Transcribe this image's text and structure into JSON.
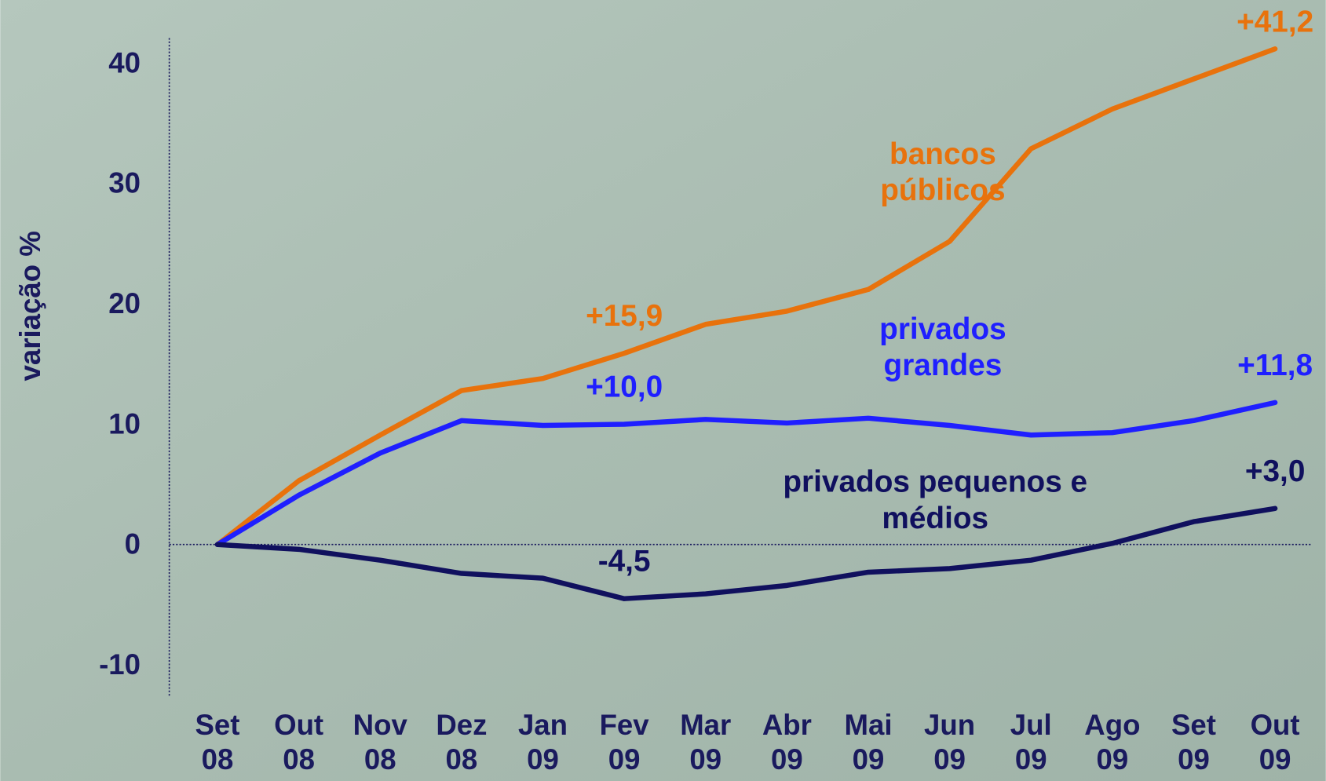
{
  "chart_data": {
    "type": "line",
    "y_label": "variação %",
    "categories": [
      "Set 08",
      "Out 08",
      "Nov 08",
      "Dez 08",
      "Jan 09",
      "Fev 09",
      "Mar 09",
      "Abr 09",
      "Mai 09",
      "Jun 09",
      "Jul 09",
      "Ago 09",
      "Set 09",
      "Out 09"
    ],
    "series": [
      {
        "name": "bancos públicos",
        "color": "#e8720c",
        "values": [
          0,
          5.3,
          9.1,
          12.8,
          13.8,
          15.9,
          18.3,
          19.4,
          21.2,
          25.2,
          32.9,
          36.2,
          38.7,
          41.2
        ],
        "value_labels": [
          null,
          null,
          null,
          null,
          null,
          "+15,9",
          null,
          null,
          null,
          null,
          null,
          null,
          null,
          "+41,2"
        ]
      },
      {
        "name": "privados grandes",
        "color": "#1f1fff",
        "values": [
          0,
          4.1,
          7.6,
          10.3,
          9.9,
          10.0,
          10.4,
          10.1,
          10.5,
          9.9,
          9.1,
          9.3,
          10.3,
          11.8
        ],
        "value_labels": [
          null,
          null,
          null,
          null,
          null,
          "+10,0",
          null,
          null,
          null,
          null,
          null,
          null,
          null,
          "+11,8"
        ]
      },
      {
        "name": "privados pequenos e médios",
        "color": "#10105e",
        "values": [
          0,
          -0.4,
          -1.3,
          -2.4,
          -2.8,
          -4.5,
          -4.1,
          -3.4,
          -2.3,
          -2.0,
          -1.3,
          0.1,
          1.9,
          3.0
        ],
        "value_labels": [
          null,
          null,
          null,
          null,
          null,
          "-4,5",
          null,
          null,
          null,
          null,
          null,
          null,
          null,
          "+3,0"
        ]
      }
    ],
    "ylim": [
      -12.7,
      42.1
    ],
    "yticks": [
      -10,
      0,
      10,
      20,
      30,
      40
    ]
  }
}
